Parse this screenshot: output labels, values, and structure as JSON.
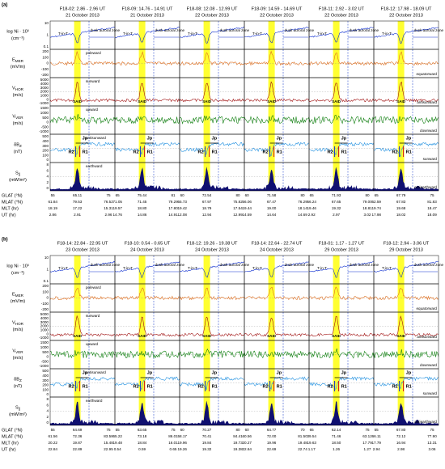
{
  "panels": [
    {
      "label": "(a)",
      "columns": [
        {
          "title": "F18-02: 2.86 - 2.96 UT",
          "date": "21 October 2013",
          "xticks": [
            "55",
            "65.11",
            "75"
          ],
          "mlat": [
            "61.84",
            "79.53",
            "76.52"
          ],
          "mlt": [
            "18.19",
            "17.22",
            "15.31"
          ],
          "ut": [
            "2.86",
            "2.91",
            "2.96"
          ]
        },
        {
          "title": "F18-09: 14.76 - 14.91 UT",
          "date": "21 October 2013",
          "xticks": [
            "65",
            "75.44",
            "81"
          ],
          "mlat": [
            "71.05",
            "71.45",
            "79.29"
          ],
          "mlt": [
            "19.57",
            "18.80",
            "17.80"
          ],
          "ut": [
            "14.76",
            "14.86",
            "14.91"
          ]
        },
        {
          "title": "F18-08: 12.08 - 12.99 UT",
          "date": "22 October 2013",
          "xticks": [
            "60",
            "72.54",
            "80"
          ],
          "mlat": [
            "55.73",
            "67.97",
            "75.82"
          ],
          "mlt": [
            "19.42",
            "18.79",
            "17.54"
          ],
          "ut": [
            "12.08",
            "12.94",
            "12.99"
          ]
        },
        {
          "title": "F18-09: 14.59 - 14.69 UT",
          "date": "22 October 2013",
          "xticks": [
            "60",
            "71.58",
            "80"
          ],
          "mlat": [
            "56.06",
            "67.47",
            "76.29"
          ],
          "mlt": [
            "19.44",
            "19.00",
            "18.14"
          ],
          "ut": [
            "14.59",
            "14.64",
            "14.69"
          ]
        },
        {
          "title": "F18-11: 2.92 - 3.02 UT",
          "date": "22 October 2013",
          "xticks": [
            "65",
            "71.93",
            "80"
          ],
          "mlat": [
            "56.24",
            "67.65",
            "79.00"
          ],
          "mlt": [
            "19.46",
            "19.32",
            "18.81"
          ],
          "ut": [
            "2.92",
            "2.97",
            "3.02"
          ]
        },
        {
          "title": "F18-12: 17.98 - 18.09 UT",
          "date": "22 October 2013",
          "xticks": [
            "65",
            "67.79",
            "75"
          ],
          "mlat": [
            "62.59",
            "67.83",
            "81.83"
          ],
          "mlt": [
            "19.74",
            "19.68",
            "18.47"
          ],
          "ut": [
            "17.98",
            "18.02",
            "18.09"
          ]
        }
      ]
    },
    {
      "label": "(b)",
      "columns": [
        {
          "title": "F18-14: 22.84 - 22.95 UT",
          "date": "23 October 2013",
          "xticks": [
            "55",
            "64.69",
            "75"
          ],
          "mlat": [
            "61.56",
            "72.36",
            "83.58"
          ],
          "mlt": [
            "20.22",
            "19.87",
            "15.48"
          ],
          "ut": [
            "22.84",
            "22.89",
            "22.95"
          ]
        },
        {
          "title": "F18-10: 0.54 - 0.65 UT",
          "date": "24 October 2013",
          "xticks": [
            "55",
            "63.65",
            "75"
          ],
          "mlat": [
            "65.22",
            "73.18",
            "86.01"
          ],
          "mlt": [
            "19.48",
            "18.84",
            "16.01"
          ],
          "ut": [
            "0.54",
            "0.59",
            "0.65"
          ]
        },
        {
          "title": "F18-12: 19.26 - 19.38 UT",
          "date": "24 October 2013",
          "xticks": [
            "60",
            "70.27",
            "80"
          ],
          "mlat": [
            "58.17",
            "70.41",
            "84.41"
          ],
          "mlt": [
            "19.96",
            "19.84",
            "19.73"
          ],
          "ut": [
            "19.26",
            "19.32",
            "19.38"
          ]
        },
        {
          "title": "F18-14: 22.64 - 22.74 UT",
          "date": "24 October 2013",
          "xticks": [
            "60",
            "64.77",
            "70"
          ],
          "mlat": [
            "60.56",
            "72.00",
            "81.50"
          ],
          "mlt": [
            "20.27",
            "19.96",
            "19.48"
          ],
          "ut": [
            "22.64",
            "22.69",
            "22.74"
          ]
        },
        {
          "title": "F18-01: 1.17 - 1.27 UT",
          "date": "29 October 2013",
          "xticks": [
            "65",
            "62.14",
            "75"
          ],
          "mlat": [
            "39.54",
            "71.46",
            "63.12"
          ],
          "mlt": [
            "19.63",
            "18.50",
            "17.79"
          ],
          "ut": [
            "1.17",
            "1.26",
            "1.27"
          ]
        },
        {
          "title": "F18-12: 2.94 - 3.06 UT",
          "date": "29 October 2013",
          "xticks": [
            "55",
            "67.80",
            "75"
          ],
          "mlat": [
            "66.11",
            "72.12",
            "77.90"
          ],
          "mlt": [
            "17.79",
            "16.94",
            "13.31"
          ],
          "ut": [
            "2.94",
            "2.98",
            "3.06"
          ]
        }
      ]
    }
  ],
  "rows": [
    {
      "label": "log Ni · 10³",
      "unit": "(cm⁻³)",
      "color": "#1030d0",
      "yticks": [
        "10",
        "1",
        "0.1"
      ]
    },
    {
      "label": "E",
      "sub": "MER",
      "unit": "(mV/m)",
      "color": "#e07020",
      "upper": "poleward",
      "lower": "equatorward",
      "yticks": [
        "200",
        "100",
        "0",
        "-100",
        "-200"
      ]
    },
    {
      "label": "V",
      "sub": "HOR",
      "unit": "(m/s)",
      "color": "#a01010",
      "upper": "sunward",
      "lower": "antisunward",
      "yticks": [
        "5000",
        "4000",
        "3000",
        "2000",
        "1000",
        "0",
        "-1000"
      ]
    },
    {
      "label": "V",
      "sub": "VER",
      "unit": "(m/s)",
      "color": "#108010",
      "upper": "upward",
      "lower": "downward",
      "yticks": [
        "1500",
        "1000",
        "500",
        "0",
        "-500",
        "-1000"
      ]
    },
    {
      "label": "δB",
      "sub": "Z",
      "unit": "(nT)",
      "color": "#2090e0",
      "upper": "antisunward",
      "lower": "sunward",
      "yticks": [
        "500",
        "400",
        "300",
        "200",
        "100",
        "0"
      ]
    },
    {
      "label": "S",
      "sub": "∥",
      "unit": "(mW/m²)",
      "color": "#101070",
      "upper": "earthward",
      "lower": "antiearthward",
      "yticks": [
        "8",
        "6",
        "4",
        "2",
        "0"
      ]
    }
  ],
  "coord_labels": [
    "GLAT (°N)",
    "MLAT (°N)",
    "MLT (hr)",
    "UT (hr)"
  ],
  "annotations": {
    "t_in_t": "T-in-T",
    "zone": "dusk auroral zone",
    "said": "SAID",
    "jp": "Jp",
    "r2": "R2",
    "r1": "R1"
  }
}
